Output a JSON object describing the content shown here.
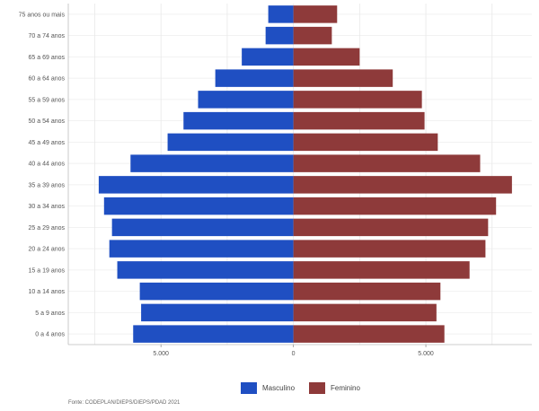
{
  "chart_data": {
    "type": "bar",
    "orientation": "horizontal",
    "title": "",
    "categories": [
      "0 a 4 anos",
      "5 a 9 anos",
      "10 a 14 anos",
      "15 a 19 anos",
      "20 a 24 anos",
      "25 a 29 anos",
      "30 a 34 anos",
      "35 a 39 anos",
      "40 a 44 anos",
      "45 a 49 anos",
      "50 a 54 anos",
      "55 a 59 anos",
      "60 a 64 anos",
      "65 a 69 anos",
      "70 a 74 anos",
      "75 anos ou mais"
    ],
    "series": [
      {
        "name": "Masculino",
        "color": "#1f4fc2",
        "values": [
          -6050,
          -5750,
          -5800,
          -6650,
          -6950,
          -6850,
          -7150,
          -7350,
          -6150,
          -4750,
          -4150,
          -3600,
          -2950,
          -1950,
          -1050,
          -950
        ]
      },
      {
        "name": "Feminino",
        "color": "#8e3a3a",
        "values": [
          5700,
          5400,
          5550,
          6650,
          7250,
          7350,
          7650,
          8250,
          7050,
          5450,
          4950,
          4850,
          3750,
          2500,
          1450,
          1650
        ]
      }
    ],
    "xlim": [
      -8500,
      9000
    ],
    "xticks": [
      {
        "value": -5000,
        "label": "5.000"
      },
      {
        "value": 0,
        "label": "0"
      },
      {
        "value": 5000,
        "label": "5.000"
      }
    ],
    "grid": true,
    "legend_position": "bottom"
  },
  "legend": {
    "male": "Masculino",
    "female": "Feminino"
  },
  "source_text": "Fonte: CODEPLAN/DIEPS/DIEPS/PDAD 2021"
}
